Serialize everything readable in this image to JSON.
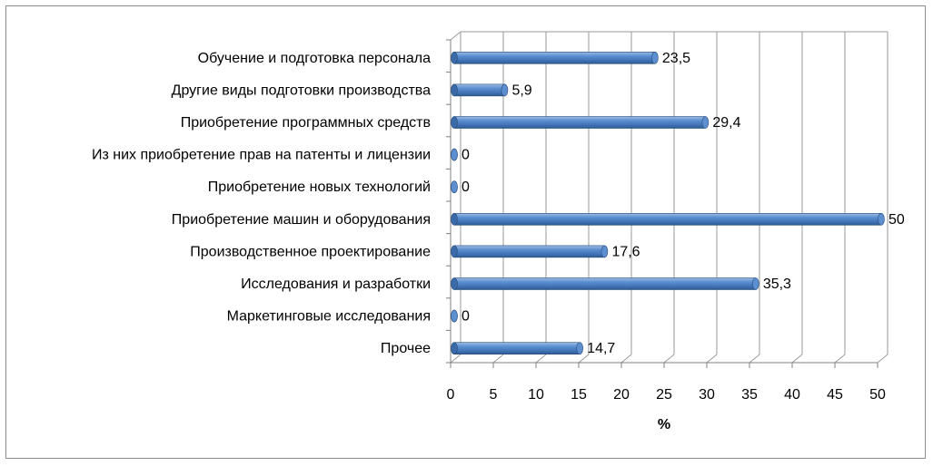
{
  "chart_data": {
    "type": "bar",
    "orientation": "horizontal",
    "style": "3d-cylinder",
    "categories": [
      "Обучение и подготовка персонала",
      "Другие виды подготовки производства",
      "Приобретение программных средств",
      "Из них приобретение прав на патенты и лицензии",
      "Приобретение новых технологий",
      "Приобретение машин и оборудования",
      "Производственное проектирование",
      "Исследования и разработки",
      "Маркетинговые исследования",
      "Прочее"
    ],
    "values": [
      23.5,
      5.9,
      29.4,
      0,
      0,
      50,
      17.6,
      35.3,
      0,
      14.7
    ],
    "value_labels": [
      "23,5",
      "5,9",
      "29,4",
      "0",
      "0",
      "50",
      "17,6",
      "35,3",
      "0",
      "14,7"
    ],
    "xlabel": "%",
    "ylabel": "",
    "title": "",
    "xlim": [
      0,
      50
    ],
    "xticks": [
      0,
      5,
      10,
      15,
      20,
      25,
      30,
      35,
      40,
      45,
      50
    ],
    "xtick_labels": [
      "0",
      "5",
      "10",
      "15",
      "20",
      "25",
      "30",
      "35",
      "40",
      "45",
      "50"
    ],
    "grid": "vertical",
    "legend": "none",
    "colors": {
      "bar": "#4f81bd",
      "bar_dark": "#2c5a8f",
      "bar_light": "#a9c4e6",
      "grid": "#9a9a9a",
      "wall": "#ffffff"
    }
  }
}
